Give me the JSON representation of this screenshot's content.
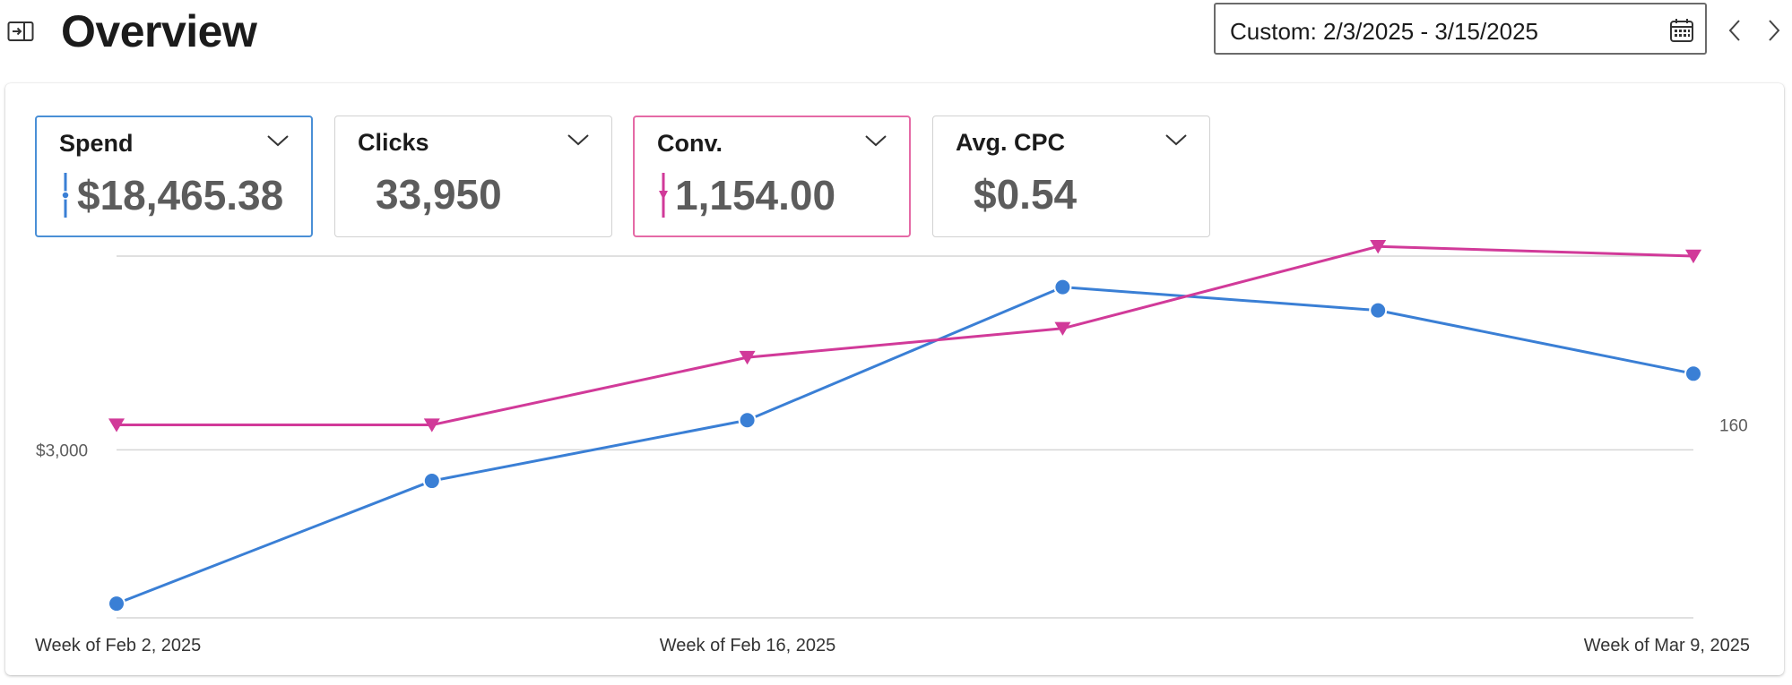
{
  "header": {
    "title": "Overview",
    "date_range": "Custom: 2/3/2025 - 3/15/2025"
  },
  "metrics": [
    {
      "label": "Spend",
      "value": "$18,465.38"
    },
    {
      "label": "Clicks",
      "value": "33,950"
    },
    {
      "label": "Conv.",
      "value": "1,154.00"
    },
    {
      "label": "Avg. CPC",
      "value": "$0.54"
    }
  ],
  "colors": {
    "spend": "#3a7fd5",
    "conv": "#d13a99",
    "grid": "#d6d6d6",
    "axis_text": "#5c5c5c"
  },
  "icons": {
    "panel": "panel-toggle-icon",
    "calendar": "calendar-icon",
    "prev": "chevron-left-icon",
    "next": "chevron-right-icon",
    "dropdown": "chevron-down-icon"
  },
  "chart_data": {
    "type": "line",
    "x_tick_labels": [
      "Week of Feb 2, 2025",
      "Week of Feb 16, 2025",
      "Week of Mar 9, 2025"
    ],
    "left_axis_ticks": [
      {
        "value": 3000,
        "label": "$3,000"
      }
    ],
    "right_axis_ticks": [
      {
        "value": 160,
        "label": "160"
      }
    ],
    "left_ylim": [
      1700,
      4500
    ],
    "right_ylim": [
      80,
      230
    ],
    "grid": true,
    "series": [
      {
        "axis": "left",
        "marker": "circle",
        "values": [
          1810,
          2760,
          3230,
          4260,
          4080,
          3590
        ]
      },
      {
        "axis": "right",
        "marker": "triangle-down",
        "values": [
          160,
          160,
          188,
          200,
          234,
          230
        ]
      }
    ]
  }
}
